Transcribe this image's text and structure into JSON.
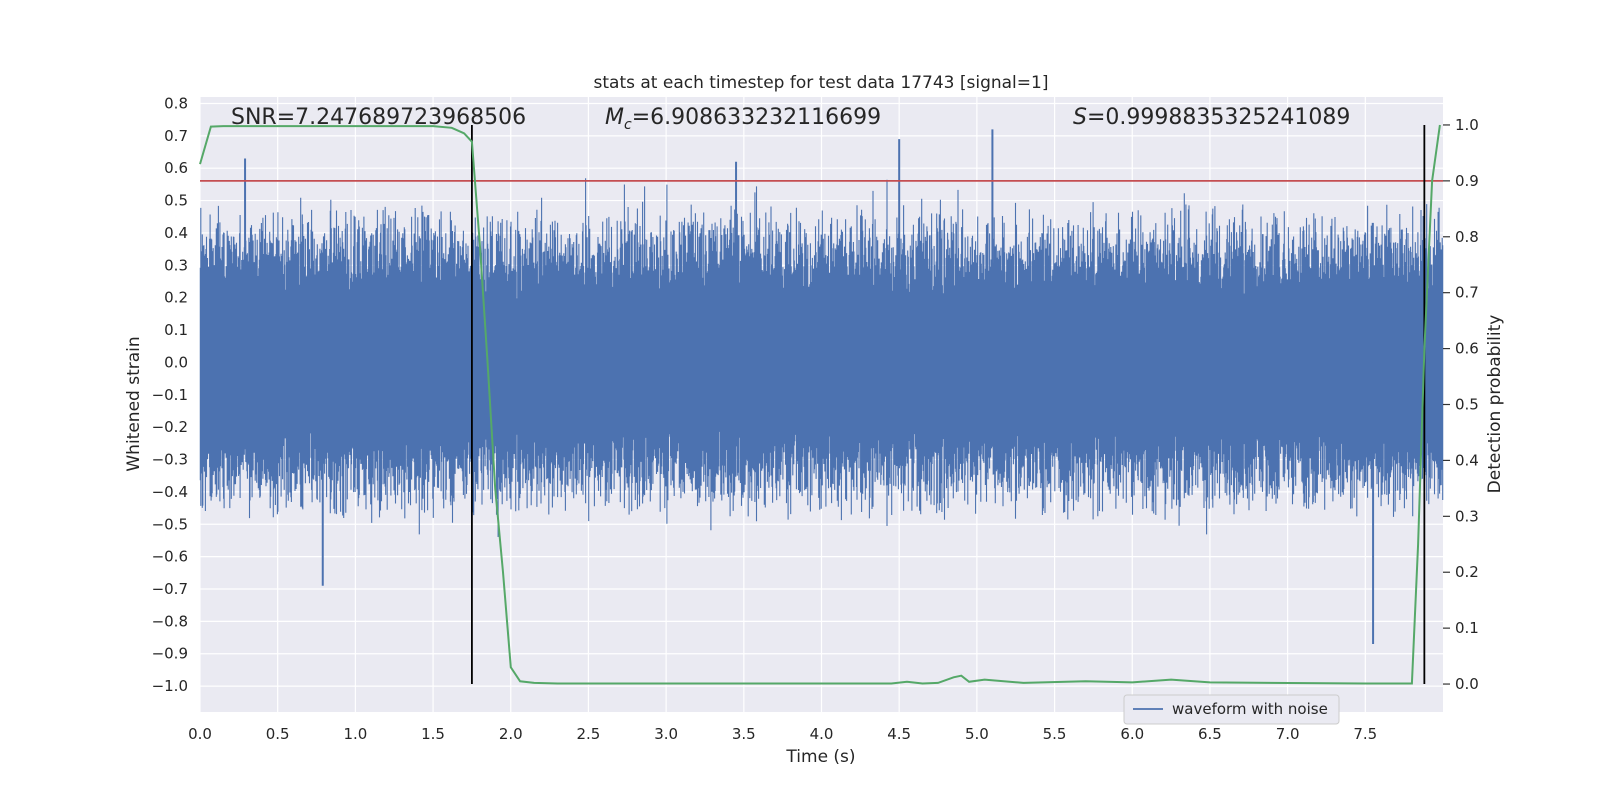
{
  "chart_data": {
    "type": "line",
    "title": "stats at each timestep for test data 17743 [signal=1]",
    "xlabel": "Time (s)",
    "ylabel": "Whitened strain",
    "y2label": "Detection probability",
    "xlim": [
      0.0,
      8.0
    ],
    "ylim": [
      -1.08,
      0.82
    ],
    "y2lim": [
      -0.05,
      1.05
    ],
    "xticks": [
      "0.0",
      "0.5",
      "1.0",
      "1.5",
      "2.0",
      "2.5",
      "3.0",
      "3.5",
      "4.0",
      "4.5",
      "5.0",
      "5.5",
      "6.0",
      "6.5",
      "7.0",
      "7.5"
    ],
    "xtick_values": [
      0.0,
      0.5,
      1.0,
      1.5,
      2.0,
      2.5,
      3.0,
      3.5,
      4.0,
      4.5,
      5.0,
      5.5,
      6.0,
      6.5,
      7.0,
      7.5
    ],
    "yticks": [
      "0.8",
      "0.7",
      "0.6",
      "0.5",
      "0.4",
      "0.3",
      "0.2",
      "0.1",
      "0.0",
      "−0.1",
      "−0.2",
      "−0.3",
      "−0.4",
      "−0.5",
      "−0.6",
      "−0.7",
      "−0.8",
      "−0.9",
      "−1.0"
    ],
    "ytick_values": [
      0.8,
      0.7,
      0.6,
      0.5,
      0.4,
      0.3,
      0.2,
      0.1,
      0.0,
      -0.1,
      -0.2,
      -0.3,
      -0.4,
      -0.5,
      -0.6,
      -0.7,
      -0.8,
      -0.9,
      -1.0
    ],
    "y2ticks": [
      "1.0",
      "0.9",
      "0.8",
      "0.7",
      "0.6",
      "0.5",
      "0.4",
      "0.3",
      "0.2",
      "0.1",
      "0.0"
    ],
    "y2tick_values": [
      1.0,
      0.9,
      0.8,
      0.7,
      0.6,
      0.5,
      0.4,
      0.3,
      0.2,
      0.1,
      0.0
    ],
    "annotations": {
      "snr": "SNR=7.247689723968506",
      "mc_symbol": "M",
      "mc_sub": "c",
      "mc_value": "=6.908633232116699",
      "s_symbol": "S",
      "s_value": "=0.9998835325241089"
    },
    "threshold": {
      "value": 0.9,
      "axis": "detection probability",
      "color": "#c44e52"
    },
    "vlines": [
      1.75,
      7.88
    ],
    "legend": {
      "label": "waveform with noise",
      "position": "bottom-right"
    },
    "series": [
      {
        "name": "waveform with noise",
        "color": "#4c72b0",
        "description": "whitened strain, noise envelope roughly ±0.45 with spikes",
        "envelope_typical": [
          -0.45,
          0.45
        ],
        "notable_spikes": [
          {
            "x": 0.29,
            "y": 0.63
          },
          {
            "x": 0.79,
            "y": -0.69
          },
          {
            "x": 3.45,
            "y": 0.62
          },
          {
            "x": 4.5,
            "y": 0.69
          },
          {
            "x": 5.1,
            "y": 0.72
          },
          {
            "x": 7.55,
            "y": -0.87
          }
        ]
      },
      {
        "name": "detection probability",
        "color": "#55a868",
        "axis": "right",
        "x": [
          0.0,
          0.07,
          0.15,
          0.5,
          1.0,
          1.5,
          1.62,
          1.7,
          1.75,
          1.8,
          1.85,
          1.9,
          1.95,
          2.0,
          2.06,
          2.15,
          2.3,
          3.0,
          3.5,
          4.0,
          4.45,
          4.55,
          4.65,
          4.75,
          4.85,
          4.9,
          4.95,
          5.05,
          5.3,
          5.7,
          6.0,
          6.25,
          6.5,
          7.5,
          7.8,
          7.84,
          7.88,
          7.93,
          7.98
        ],
        "values": [
          0.93,
          0.997,
          0.998,
          0.998,
          0.998,
          0.998,
          0.995,
          0.985,
          0.97,
          0.79,
          0.58,
          0.35,
          0.2,
          0.03,
          0.005,
          0.002,
          0.001,
          0.001,
          0.001,
          0.001,
          0.001,
          0.004,
          0.001,
          0.002,
          0.012,
          0.015,
          0.004,
          0.008,
          0.002,
          0.005,
          0.003,
          0.008,
          0.003,
          0.001,
          0.001,
          0.25,
          0.6,
          0.9,
          1.0
        ]
      }
    ]
  }
}
